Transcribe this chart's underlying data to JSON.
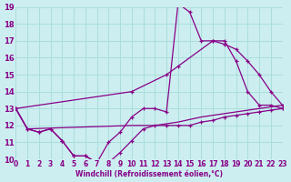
{
  "xlabel": "Windchill (Refroidissement éolien,°C)",
  "background_color": "#cceef0",
  "grid_color": "#aadddd",
  "line_color": "#880088",
  "xmin": 0,
  "xmax": 23,
  "ymin": 10,
  "ymax": 19,
  "xtick_fontsize": 5.5,
  "ytick_fontsize": 6.0,
  "series": [
    {
      "x": [
        0,
        1,
        2,
        3,
        4,
        5,
        6,
        7,
        8,
        9,
        10,
        11,
        12,
        13,
        14,
        15,
        16,
        17,
        18,
        19,
        20,
        21,
        22,
        23
      ],
      "y": [
        13,
        11.8,
        11.6,
        11.8,
        11.1,
        10.2,
        10.2,
        9.8,
        9.8,
        10.4,
        11.1,
        11.8,
        12.0,
        12.0,
        12.0,
        12.0,
        12.2,
        12.3,
        12.5,
        12.6,
        12.7,
        12.8,
        12.9,
        13.0
      ],
      "marker": true
    },
    {
      "x": [
        0,
        1,
        2,
        3,
        4,
        5,
        6,
        7,
        8,
        9,
        10,
        11,
        12,
        13,
        14,
        15,
        16,
        17,
        18,
        19,
        20,
        21,
        22,
        23
      ],
      "y": [
        13,
        11.8,
        11.6,
        11.8,
        11.1,
        10.2,
        10.2,
        9.8,
        11.0,
        11.6,
        12.5,
        13.0,
        13.0,
        12.8,
        19.2,
        18.7,
        17.0,
        17.0,
        17.0,
        15.8,
        14.0,
        13.2,
        13.2,
        13.0
      ],
      "marker": true
    },
    {
      "x": [
        0,
        10,
        13,
        14,
        17,
        18,
        19,
        20,
        21,
        22,
        23
      ],
      "y": [
        13,
        14.0,
        15.0,
        15.5,
        17.0,
        16.8,
        16.5,
        15.8,
        15.0,
        14.0,
        13.2
      ],
      "marker": true
    },
    {
      "x": [
        0,
        1,
        10,
        12,
        14,
        16,
        18,
        20,
        22,
        23
      ],
      "y": [
        13,
        11.8,
        12.0,
        12.0,
        12.2,
        12.5,
        12.7,
        12.9,
        13.1,
        13.2
      ],
      "marker": false
    }
  ]
}
